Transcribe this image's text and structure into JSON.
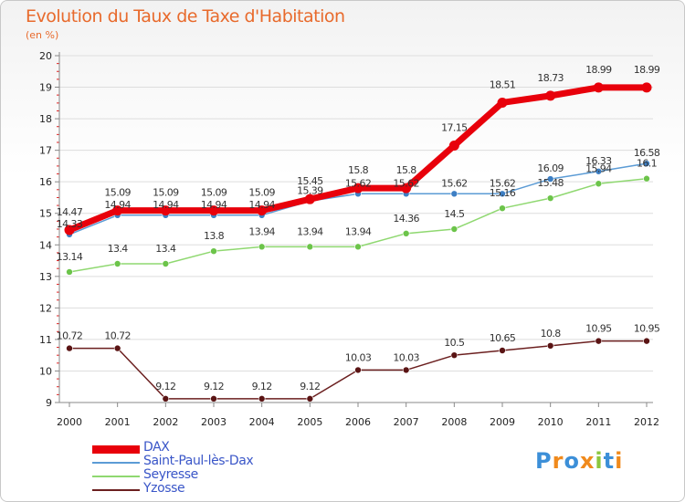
{
  "title": "Evolution du Taux de Taxe d'Habitation",
  "unit": "(en %)",
  "logo": "Proxiti",
  "chart_data": {
    "type": "line",
    "title": "Evolution du Taux de Taxe d'Habitation",
    "ylabel": "(en %)",
    "xlabel": "",
    "x": [
      "2000",
      "2001",
      "2002",
      "2003",
      "2004",
      "2005",
      "2006",
      "2007",
      "2008",
      "2009",
      "2010",
      "2011",
      "2012"
    ],
    "ylim": [
      9,
      20
    ],
    "yticks": [
      "9",
      "10",
      "11",
      "12",
      "13",
      "14",
      "15",
      "16",
      "17",
      "18",
      "19",
      "20"
    ],
    "grid": true,
    "legend_position": "bottom-left",
    "series": [
      {
        "name": "DAX",
        "color": "#e8000b",
        "values": [
          14.47,
          15.09,
          15.09,
          15.09,
          15.09,
          15.45,
          15.8,
          15.8,
          17.15,
          18.51,
          18.73,
          18.99,
          18.99
        ],
        "labels": [
          "14.47",
          "15.09",
          "15.09",
          "15.09",
          "15.09",
          "15.45",
          "15.8",
          "15.8",
          "17.15",
          "18.51",
          "18.73",
          "18.99",
          "18.99"
        ]
      },
      {
        "name": "Saint-Paul-lès-Dax",
        "color": "#5b9bd5",
        "values": [
          14.33,
          14.94,
          14.94,
          14.94,
          14.94,
          15.39,
          15.62,
          15.62,
          15.62,
          15.62,
          16.09,
          16.33,
          16.58
        ],
        "labels": [
          "14.33",
          "14.94",
          "14.94",
          "14.94",
          "14.94",
          "15.39",
          "15.62",
          "15.62",
          "15.62",
          "15.62",
          "16.09",
          "16.33",
          "16.58"
        ]
      },
      {
        "name": "Seyresse",
        "color": "#8fd870",
        "values": [
          13.14,
          13.4,
          13.4,
          13.8,
          13.94,
          13.94,
          13.94,
          14.36,
          14.5,
          15.16,
          15.48,
          15.94,
          16.1
        ],
        "labels": [
          "13.14",
          "13.4",
          "13.4",
          "13.8",
          "13.94",
          "13.94",
          "13.94",
          "14.36",
          "14.5",
          "15.16",
          "15.48",
          "15.94",
          "16.1"
        ]
      },
      {
        "name": "Yzosse",
        "color": "#6b1f1f",
        "values": [
          10.72,
          10.72,
          9.12,
          9.12,
          9.12,
          9.12,
          10.03,
          10.03,
          10.5,
          10.65,
          10.8,
          10.95,
          10.95
        ],
        "labels": [
          "10.72",
          "10.72",
          "9.12",
          "9.12",
          "9.12",
          "9.12",
          "10.03",
          "10.03",
          "10.5",
          "10.65",
          "10.8",
          "10.95",
          "10.95"
        ]
      }
    ]
  }
}
